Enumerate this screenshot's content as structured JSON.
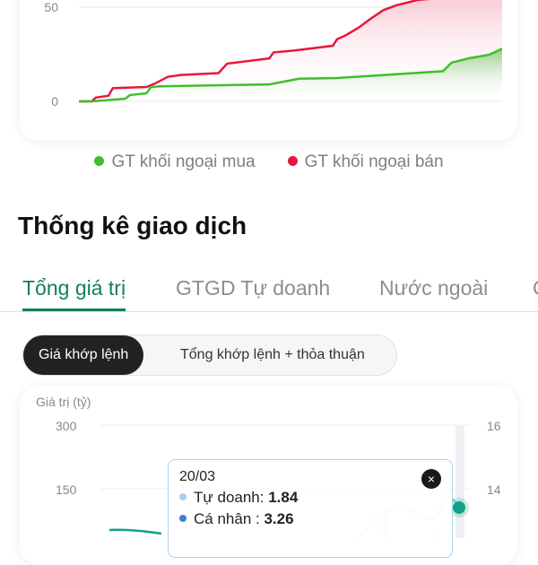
{
  "chart_data": [
    {
      "type": "area",
      "yticks": [
        "0",
        "50"
      ],
      "series": [
        {
          "name": "GT khối ngoại mua",
          "color": "#3fbf2a",
          "x": [
            0,
            3,
            11,
            12,
            16,
            17,
            19,
            45,
            52,
            61,
            71,
            86,
            88,
            92,
            97,
            100
          ],
          "values": [
            0,
            0,
            1.4,
            3.3,
            4.3,
            7.6,
            8,
            9,
            12,
            12.4,
            13.8,
            16,
            20.5,
            22.8,
            24.8,
            28
          ]
        },
        {
          "name": "GT khối ngoại bán",
          "color": "#e8173d",
          "x": [
            0,
            3,
            4,
            7,
            8,
            16,
            18,
            21,
            24,
            33,
            35,
            45,
            46,
            51,
            60,
            61,
            63,
            66,
            69,
            72,
            75,
            80,
            100
          ],
          "values": [
            0,
            0,
            2,
            3,
            7,
            7.6,
            9.5,
            13,
            14,
            15,
            20,
            22.8,
            26,
            27,
            29.5,
            33,
            35,
            39,
            44,
            48.5,
            51,
            53.8,
            58
          ]
        }
      ]
    },
    {
      "type": "line",
      "ylabel": "Giá trị (tỷ)",
      "yticks_left": [
        "300",
        "150"
      ],
      "yticks_right": [
        "16",
        "14"
      ],
      "tooltip": {
        "date": "20/03",
        "rows": [
          {
            "label": "Tự doanh:",
            "value": "1.84",
            "color": "#a9cdef"
          },
          {
            "label": "Cá nhân :",
            "value": "3.26",
            "color": "#3d7fd9"
          }
        ]
      }
    }
  ],
  "title": "Thống kê giao dịch",
  "tabs": [
    "Tổng giá trị",
    "GTGD Tự doanh",
    "Nước ngoài",
    "C"
  ],
  "segment": [
    "Giá khớp lệnh",
    "Tổng khớp lệnh + thỏa thuận"
  ],
  "close_icon": "×"
}
